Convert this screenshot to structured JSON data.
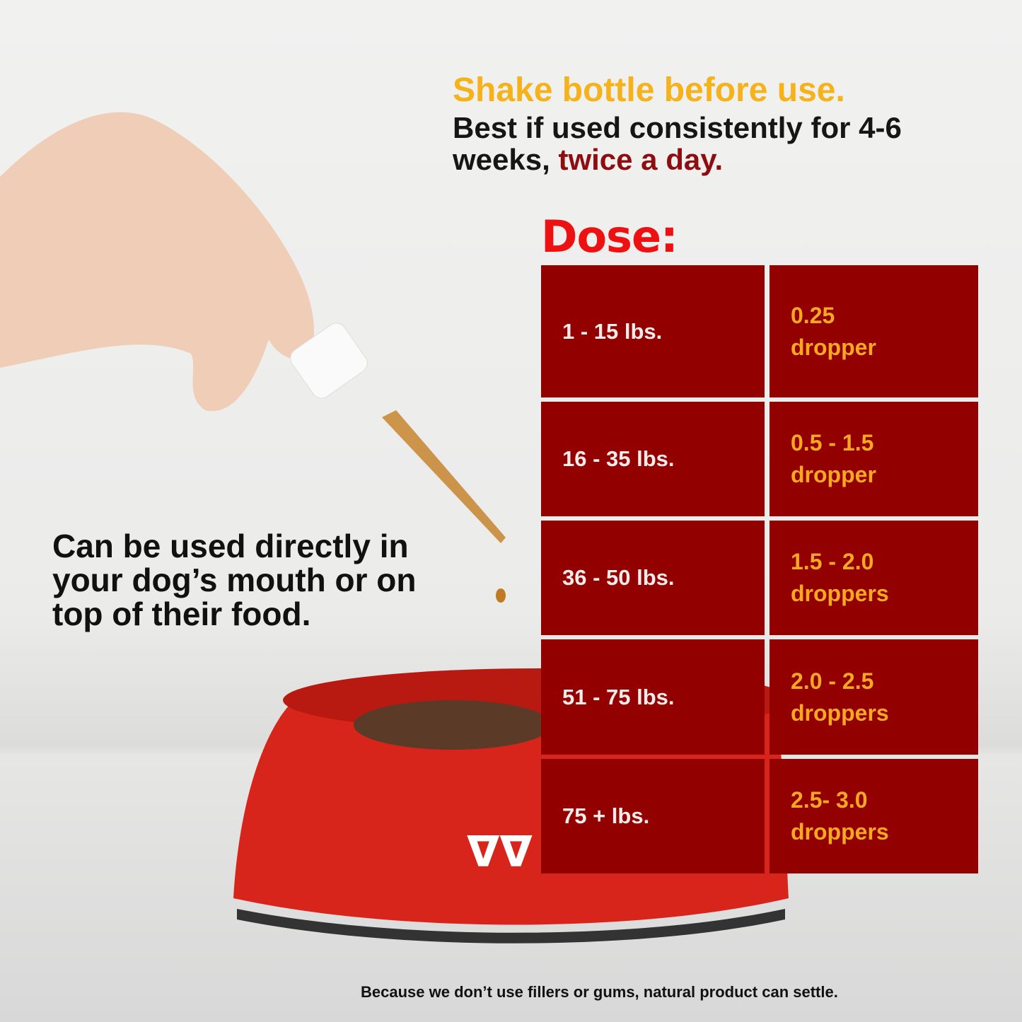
{
  "header": {
    "shake": "Shake bottle before use.",
    "best_prefix": "Best if used consistently for 4-6 weeks, ",
    "best_highlight": "twice a day."
  },
  "dose_title": "Dose:",
  "dose_table": [
    {
      "weight": "1 - 15 lbs.",
      "amount_line1": "0.25",
      "amount_line2": "dropper"
    },
    {
      "weight": "16 - 35 lbs.",
      "amount_line1": "0.5 - 1.5",
      "amount_line2": "dropper"
    },
    {
      "weight": "36 - 50 lbs.",
      "amount_line1": "1.5 - 2.0",
      "amount_line2": "droppers"
    },
    {
      "weight": "51 - 75 lbs.",
      "amount_line1": "2.0 - 2.5",
      "amount_line2": "droppers"
    },
    {
      "weight": "75 + lbs.",
      "amount_line1": "2.5- 3.0",
      "amount_line2": "droppers"
    }
  ],
  "side_text": "Can be used directly in your dog’s mouth or on top of their food.",
  "footnote": "Because we don’t use fillers or gums, natural product can settle.",
  "colors": {
    "table_bg": "#920000",
    "accent_yellow": "#f5b21a",
    "dose_red": "#ee1111",
    "highlight_red": "#8e0d10"
  }
}
